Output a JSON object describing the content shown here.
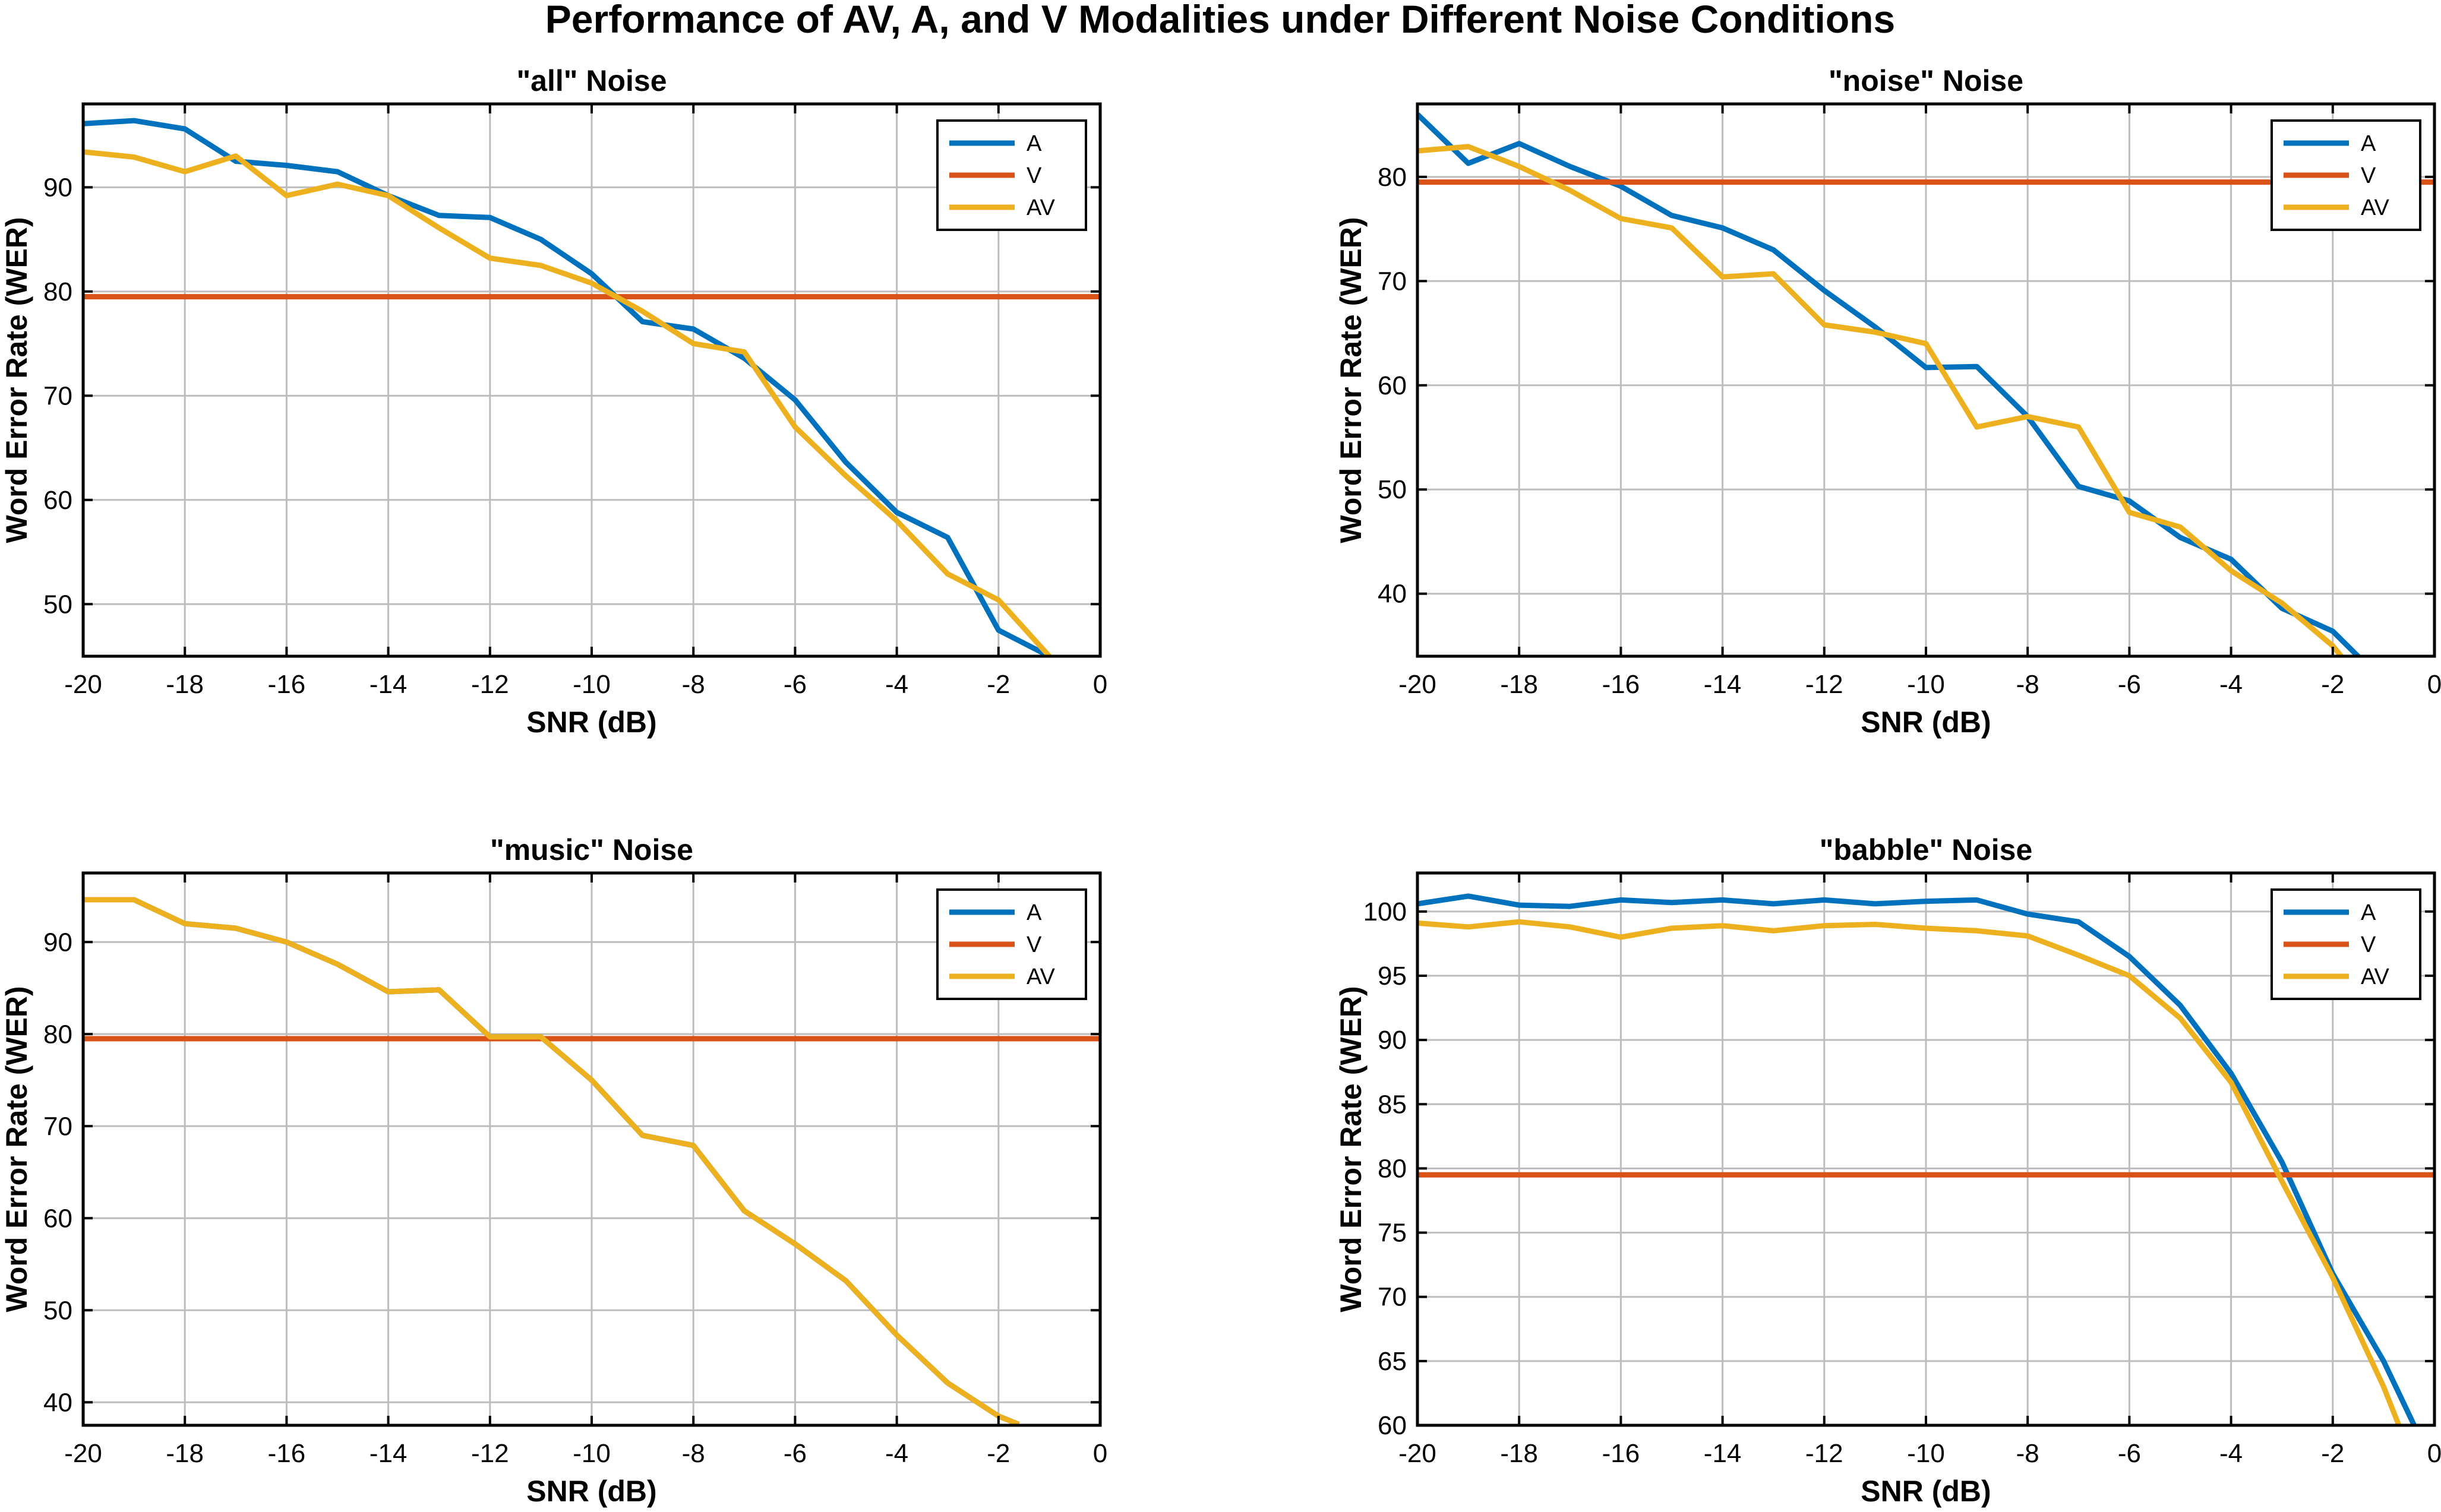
{
  "figure_title": "Performance of AV, A, and V Modalities under Different Noise Conditions",
  "chart_data": [
    {
      "type": "line",
      "title": "\"all\" Noise",
      "xlabel": "SNR (dB)",
      "ylabel": "Word Error Rate (WER)",
      "xlim": [
        -20,
        0
      ],
      "ylim": [
        45,
        98
      ],
      "xticks": [
        -20,
        -18,
        -16,
        -14,
        -12,
        -10,
        -8,
        -6,
        -4,
        -2,
        0
      ],
      "yticks": [
        50,
        60,
        70,
        80,
        90
      ],
      "grid": true,
      "legend_position": "top-right",
      "series": [
        {
          "name": "A",
          "color": "#0072BD",
          "x": [
            -20,
            -19,
            -18,
            -17,
            -16,
            -15,
            -14,
            -13,
            -12,
            -11,
            -10,
            -9,
            -8,
            -7,
            -6,
            -5,
            -4,
            -3,
            -2,
            -1
          ],
          "y": [
            96.1,
            96.4,
            95.6,
            92.5,
            92.1,
            91.5,
            89.2,
            87.3,
            87.1,
            85.0,
            81.7,
            77.1,
            76.4,
            73.6,
            69.6,
            63.6,
            58.8,
            56.4,
            47.5,
            45.0
          ]
        },
        {
          "name": "V",
          "color": "#D95319",
          "x": [
            -20,
            0
          ],
          "y": [
            79.5,
            79.5
          ]
        },
        {
          "name": "AV",
          "color": "#EDB120",
          "x": [
            -20,
            -19,
            -18,
            -17,
            -16,
            -15,
            -14,
            -13,
            -12,
            -11,
            -10,
            -9,
            -8,
            -7,
            -6,
            -5,
            -4,
            -3,
            -2,
            -1
          ],
          "y": [
            93.4,
            92.9,
            91.5,
            93.0,
            89.2,
            90.3,
            89.2,
            86.1,
            83.2,
            82.5,
            80.8,
            78.1,
            75.0,
            74.2,
            67.0,
            62.3,
            58.0,
            52.9,
            50.4,
            45.0
          ]
        }
      ]
    },
    {
      "type": "line",
      "title": "\"noise\" Noise",
      "xlabel": "SNR (dB)",
      "ylabel": "Word Error Rate (WER)",
      "xlim": [
        -20,
        0
      ],
      "ylim": [
        34,
        87
      ],
      "xticks": [
        -20,
        -18,
        -16,
        -14,
        -12,
        -10,
        -8,
        -6,
        -4,
        -2,
        0
      ],
      "yticks": [
        40,
        50,
        60,
        70,
        80
      ],
      "grid": true,
      "legend_position": "top-right",
      "series": [
        {
          "name": "A",
          "color": "#0072BD",
          "x": [
            -20,
            -19,
            -18,
            -17,
            -16,
            -15,
            -14,
            -13,
            -12,
            -11,
            -10,
            -9,
            -8,
            -7,
            -6,
            -5,
            -4,
            -3,
            -2,
            -1.4
          ],
          "y": [
            86.0,
            81.3,
            83.2,
            81.0,
            79.1,
            76.3,
            75.1,
            73.0,
            69.1,
            65.6,
            61.7,
            61.8,
            57.0,
            50.3,
            48.9,
            45.4,
            43.3,
            38.6,
            36.4,
            33.5
          ]
        },
        {
          "name": "V",
          "color": "#D95319",
          "x": [
            -20,
            0
          ],
          "y": [
            79.5,
            79.5
          ]
        },
        {
          "name": "AV",
          "color": "#EDB120",
          "x": [
            -20,
            -19,
            -18,
            -17,
            -16,
            -15,
            -14,
            -13,
            -12,
            -11,
            -10,
            -9,
            -8,
            -7,
            -6,
            -5,
            -4,
            -3,
            -2,
            -1.8
          ],
          "y": [
            82.5,
            82.9,
            81.0,
            78.7,
            76.0,
            75.1,
            70.4,
            70.7,
            65.8,
            65.1,
            64.0,
            56.0,
            57.0,
            56.0,
            47.8,
            46.4,
            42.2,
            39.1,
            35.0,
            33.8
          ]
        }
      ]
    },
    {
      "type": "line",
      "title": "\"music\" Noise",
      "xlabel": "SNR (dB)",
      "ylabel": "Word Error Rate (WER)",
      "xlim": [
        -20,
        0
      ],
      "ylim": [
        37.5,
        97.5
      ],
      "xticks": [
        -20,
        -18,
        -16,
        -14,
        -12,
        -10,
        -8,
        -6,
        -4,
        -2,
        0
      ],
      "yticks": [
        40,
        50,
        60,
        70,
        80,
        90
      ],
      "grid": true,
      "legend_position": "top-right",
      "series": [
        {
          "name": "A",
          "color": "#0072BD",
          "x": [
            -20,
            -19,
            -18,
            -17,
            -16,
            -15,
            -14,
            -13,
            -12,
            -11,
            -10,
            -9,
            -8,
            -7,
            -6,
            -5,
            -4,
            -3,
            -2,
            -1.6
          ],
          "y": [
            94.6,
            94.6,
            92.0,
            91.5,
            90.0,
            87.6,
            84.6,
            84.8,
            79.7,
            79.7,
            75.0,
            69.0,
            67.9,
            60.8,
            57.2,
            53.2,
            47.3,
            42.1,
            38.5,
            37.6
          ]
        },
        {
          "name": "V",
          "color": "#D95319",
          "x": [
            -20,
            0
          ],
          "y": [
            79.5,
            79.5
          ]
        },
        {
          "name": "AV",
          "color": "#EDB120",
          "x": [
            -20,
            -19,
            -18,
            -17,
            -16,
            -15,
            -14,
            -13,
            -12,
            -11,
            -10,
            -9,
            -8,
            -7,
            -6,
            -5,
            -4,
            -3,
            -2,
            -1.6
          ],
          "y": [
            94.6,
            94.6,
            92.0,
            91.5,
            90.0,
            87.6,
            84.6,
            84.8,
            79.7,
            79.7,
            75.0,
            69.0,
            67.9,
            60.8,
            57.2,
            53.2,
            47.3,
            42.1,
            38.5,
            37.6
          ]
        }
      ]
    },
    {
      "type": "line",
      "title": "\"babble\" Noise",
      "xlabel": "SNR (dB)",
      "ylabel": "Word Error Rate (WER)",
      "xlim": [
        -20,
        0
      ],
      "ylim": [
        60,
        103
      ],
      "xticks": [
        -20,
        -18,
        -16,
        -14,
        -12,
        -10,
        -8,
        -6,
        -4,
        -2,
        0
      ],
      "yticks": [
        60,
        65,
        70,
        75,
        80,
        85,
        90,
        95,
        100
      ],
      "grid": true,
      "legend_position": "top-right",
      "series": [
        {
          "name": "A",
          "color": "#0072BD",
          "x": [
            -20,
            -19,
            -18,
            -17,
            -16,
            -15,
            -14,
            -13,
            -12,
            -11,
            -10,
            -9,
            -8,
            -7,
            -6,
            -5,
            -4,
            -3,
            -2,
            -1,
            -0.4
          ],
          "y": [
            100.6,
            101.2,
            100.5,
            100.4,
            100.9,
            100.7,
            100.9,
            100.6,
            100.9,
            100.6,
            100.8,
            100.9,
            99.8,
            99.2,
            96.5,
            92.7,
            87.4,
            80.5,
            71.8,
            65.0,
            60.0
          ]
        },
        {
          "name": "V",
          "color": "#D95319",
          "x": [
            -20,
            0
          ],
          "y": [
            79.5,
            79.5
          ]
        },
        {
          "name": "AV",
          "color": "#EDB120",
          "x": [
            -20,
            -19,
            -18,
            -17,
            -16,
            -15,
            -14,
            -13,
            -12,
            -11,
            -10,
            -9,
            -8,
            -7,
            -6,
            -5,
            -4,
            -3,
            -2,
            -1,
            -0.7
          ],
          "y": [
            99.1,
            98.8,
            99.2,
            98.8,
            98.0,
            98.7,
            98.9,
            98.5,
            98.9,
            99.0,
            98.7,
            98.5,
            98.1,
            96.6,
            95.0,
            91.7,
            86.7,
            79.0,
            71.5,
            63.0,
            60.0
          ]
        }
      ]
    }
  ]
}
